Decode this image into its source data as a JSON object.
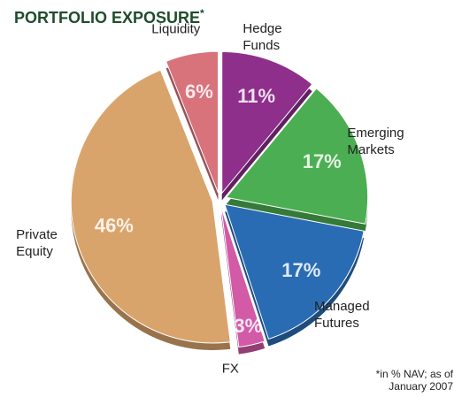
{
  "chart_data": {
    "type": "pie",
    "title": "PORTFOLIO EXPOSURE",
    "title_mark": "*",
    "categories": [
      "Hedge Funds",
      "Emerging Markets",
      "Managed Futures",
      "FX",
      "Private Equity",
      "Liquidity"
    ],
    "values": [
      11,
      17,
      17,
      3,
      46,
      6
    ],
    "value_labels": [
      "11%",
      "17%",
      "17%",
      "3%",
      "46%",
      "6%"
    ],
    "colors": [
      "#8e2f8c",
      "#4cae52",
      "#2a6cb3",
      "#d25aa6",
      "#d9a46c",
      "#d8737c"
    ],
    "footnote": "*in % NAV; as of January 2007"
  }
}
